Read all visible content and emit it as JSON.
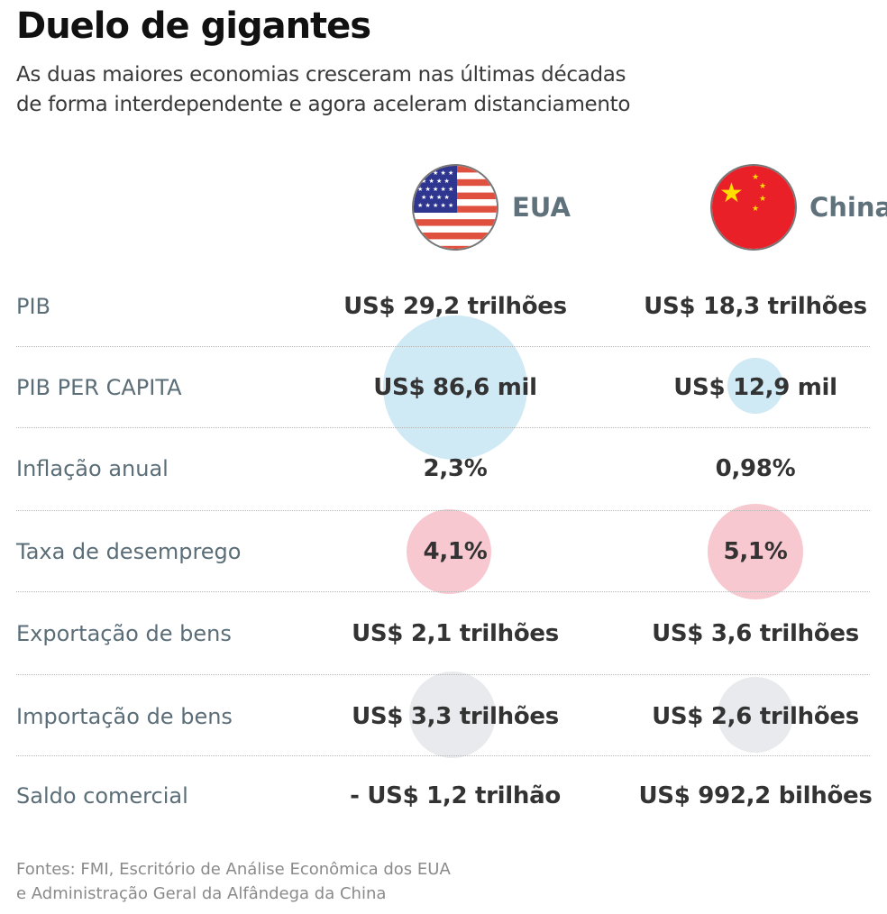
{
  "title": "Duelo de gigantes",
  "subtitle": [
    "As duas maiores economias cresceram nas últimas décadas",
    "de forma interdependente e agora aceleram distanciamento"
  ],
  "colors": {
    "gdp_per_capita": "#cfe9f5",
    "unemployment": "#f8c8d0",
    "imports": "#e8eaed",
    "label": "#5b6e78",
    "value": "#333333"
  },
  "chart_data": {
    "type": "table",
    "columns": [
      {
        "name": "EUA",
        "icon": "usa-flag-icon"
      },
      {
        "name": "China",
        "icon": "china-flag-icon"
      }
    ],
    "rows": [
      {
        "label": "PIB",
        "values": [
          "US$ 29,2 trilhões",
          "US$ 18,3 trilhões"
        ]
      },
      {
        "label": "PIB PER CAPITA",
        "values": [
          "US$ 86,6 mil",
          "US$ 12,9 mil"
        ],
        "bubble": "gdp_per_capita",
        "numeric": [
          86.6,
          12.9
        ]
      },
      {
        "label": "Inflação anual",
        "values": [
          "2,3%",
          "0,98%"
        ]
      },
      {
        "label": "Taxa de desemprego",
        "values": [
          "4,1%",
          "5,1%"
        ],
        "bubble": "unemployment",
        "numeric": [
          4.1,
          5.1
        ]
      },
      {
        "label": "Exportação de bens",
        "values": [
          "US$ 2,1 trilhões",
          "US$ 3,6 trilhões"
        ]
      },
      {
        "label": "Importação de bens",
        "values": [
          "US$ 3,3 trilhões",
          "US$ 2,6 trilhões"
        ],
        "bubble": "imports",
        "numeric": [
          3.3,
          2.6
        ]
      },
      {
        "label": "Saldo comercial",
        "values": [
          "- US$ 1,2 trilhão",
          "US$ 992,2 bilhões"
        ]
      }
    ]
  },
  "footer": [
    "Fontes: FMI, Escritório de Análise Econômica dos EUA",
    "e Administração Geral da Alfândega da China"
  ]
}
